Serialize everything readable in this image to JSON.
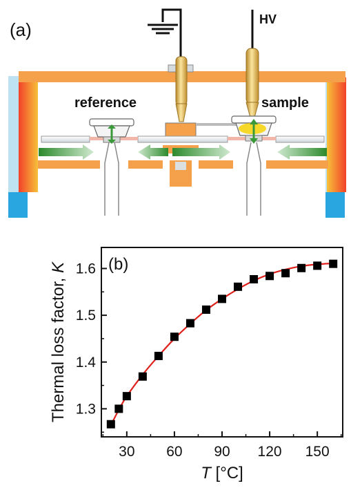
{
  "panel_a": {
    "label": "(a)",
    "hv_label": "HV",
    "reference_label": "reference",
    "sample_label": "sample",
    "colors": {
      "frame": "#f5a04a",
      "heater_inner": "#f2402a",
      "heater_outer": "#f7c23a",
      "cooling": "#b9dff0",
      "cooling_bottom": "#2aa8e0",
      "probe": "#e8b84a",
      "arrow": "#3a9a3a"
    }
  },
  "panel_b": {
    "label": "(b)"
  },
  "chart_data": {
    "type": "scatter",
    "xlabel_var": "T",
    "xlabel_unit": " [°C]",
    "ylabel_text": "Thermal loss factor, ",
    "ylabel_var": "K",
    "xlim": [
      14,
      166
    ],
    "ylim": [
      1.24,
      1.645
    ],
    "xticks": [
      30,
      60,
      90,
      120,
      150
    ],
    "yticks": [
      1.3,
      1.4,
      1.5,
      1.6
    ],
    "ytick_labels": [
      "1.3",
      "1.4",
      "1.5",
      "1.6"
    ],
    "grid": false,
    "series": [
      {
        "marker": "square",
        "color": "#000000",
        "x": [
          20,
          25,
          30,
          40,
          50,
          60,
          70,
          80,
          90,
          100,
          110,
          120,
          130,
          140,
          150,
          160
        ],
        "y": [
          1.267,
          1.3,
          1.327,
          1.369,
          1.413,
          1.454,
          1.483,
          1.512,
          1.535,
          1.561,
          1.577,
          1.584,
          1.59,
          1.601,
          1.606,
          1.61
        ]
      }
    ],
    "fit": {
      "color": "#e0201a",
      "x": [
        20,
        25,
        30,
        40,
        50,
        60,
        70,
        80,
        90,
        100,
        110,
        120,
        130,
        140,
        150,
        160
      ],
      "y": [
        1.265,
        1.298,
        1.327,
        1.373,
        1.413,
        1.45,
        1.482,
        1.511,
        1.535,
        1.556,
        1.574,
        1.588,
        1.598,
        1.605,
        1.609,
        1.611
      ]
    }
  }
}
